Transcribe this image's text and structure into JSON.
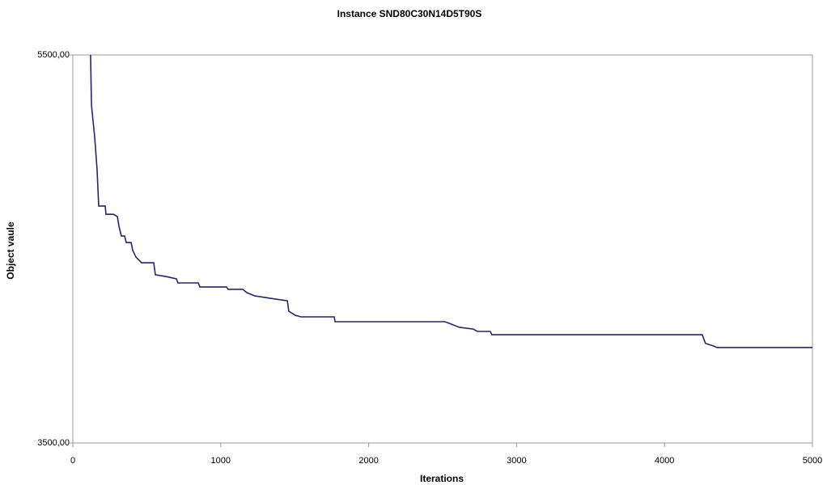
{
  "chart_data": {
    "type": "line",
    "title": "Instance SND80C30N14D5T90S",
    "x_label": "Iterations",
    "y_label": "Object vaule",
    "xlim": [
      0,
      5000
    ],
    "xticks": [
      0,
      1000,
      2000,
      3000,
      4000,
      5000
    ],
    "ylim": [
      3500,
      5500
    ],
    "yticks": [
      {
        "value": 3500,
        "label": "3500,00"
      },
      {
        "value": 5500,
        "label": "5500,00"
      }
    ],
    "grid": false,
    "series": [
      {
        "color": "#24247a",
        "x": [
          120,
          126,
          148,
          164,
          175,
          219,
          224,
          274,
          301,
          312,
          328,
          350,
          361,
          394,
          405,
          427,
          465,
          547,
          558,
          629,
          700,
          711,
          848,
          859,
          1039,
          1050,
          1149,
          1176,
          1231,
          1368,
          1450,
          1460,
          1504,
          1543,
          1767,
          1773,
          2516,
          2543,
          2614,
          2707,
          2735,
          2822,
          2833,
          4255,
          4277,
          4332,
          4354,
          5000
        ],
        "values": [
          5500,
          5242,
          5075,
          4908,
          4721,
          4721,
          4679,
          4679,
          4667,
          4617,
          4567,
          4567,
          4533,
          4533,
          4492,
          4458,
          4429,
          4429,
          4367,
          4358,
          4346,
          4325,
          4325,
          4304,
          4304,
          4292,
          4292,
          4275,
          4258,
          4242,
          4233,
          4179,
          4158,
          4150,
          4150,
          4125,
          4125,
          4117,
          4096,
          4087,
          4075,
          4075,
          4058,
          4058,
          4013,
          4000,
          3992,
          3992
        ]
      }
    ]
  }
}
